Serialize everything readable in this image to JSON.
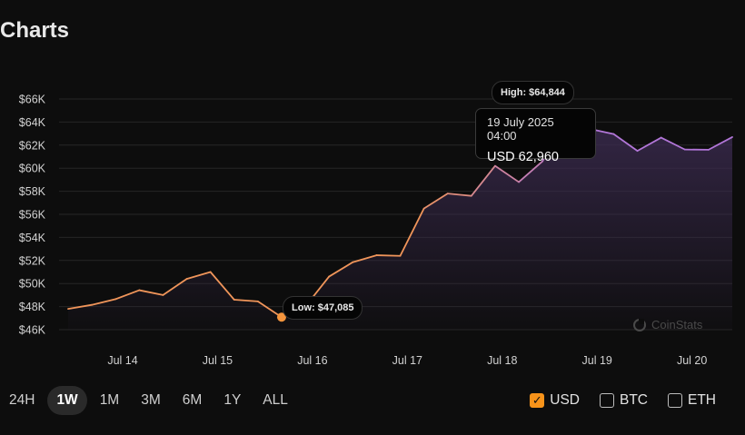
{
  "page": {
    "title": "Charts"
  },
  "chart_data": {
    "type": "line",
    "title": "Charts",
    "currency": "USD",
    "ylim": [
      46000,
      66000
    ],
    "y_ticks": [
      {
        "value": 46000,
        "label": "$46K"
      },
      {
        "value": 48000,
        "label": "$48K"
      },
      {
        "value": 50000,
        "label": "$50K"
      },
      {
        "value": 52000,
        "label": "$52K"
      },
      {
        "value": 54000,
        "label": "$54K"
      },
      {
        "value": 56000,
        "label": "$56K"
      },
      {
        "value": 58000,
        "label": "$58K"
      },
      {
        "value": 60000,
        "label": "$60K"
      },
      {
        "value": 62000,
        "label": "$62K"
      },
      {
        "value": 64000,
        "label": "$64K"
      },
      {
        "value": 66000,
        "label": "$66K"
      }
    ],
    "x_ticks": [
      {
        "t": 2.3,
        "label": "Jul 14"
      },
      {
        "t": 6.3,
        "label": "Jul 15"
      },
      {
        "t": 10.3,
        "label": "Jul 16"
      },
      {
        "t": 14.3,
        "label": "Jul 17"
      },
      {
        "t": 18.3,
        "label": "Jul 18"
      },
      {
        "t": 22.3,
        "label": "Jul 19"
      },
      {
        "t": 26.3,
        "label": "Jul 20"
      }
    ],
    "highlight_start_t": 21,
    "series": [
      {
        "name": "USD",
        "values": [
          47800,
          48150,
          48650,
          49420,
          49000,
          50400,
          51000,
          48600,
          48450,
          47085,
          48000,
          50600,
          51850,
          52450,
          52400,
          56500,
          57800,
          57600,
          60200,
          58800,
          60600,
          64844,
          63400,
          62960,
          61500,
          62650,
          61620,
          61600,
          62700
        ]
      }
    ],
    "high": {
      "t": 21,
      "value": 64844,
      "label": "High: $64,844"
    },
    "low": {
      "t": 9,
      "value": 47085,
      "label": "Low: $47,085"
    },
    "tooltip": {
      "date": "19 July 2025 04:00",
      "value_text": "USD 62,960"
    }
  },
  "colors": {
    "line_low": "#f0955a",
    "line_high": "#b276d8",
    "grid": "#262626",
    "low_dot": "#f5953d",
    "fill_top": "#3a2a4e"
  },
  "controls": {
    "ranges": [
      {
        "label": "24H",
        "active": false
      },
      {
        "label": "1W",
        "active": true
      },
      {
        "label": "1M",
        "active": false
      },
      {
        "label": "3M",
        "active": false
      },
      {
        "label": "6M",
        "active": false
      },
      {
        "label": "1Y",
        "active": false
      },
      {
        "label": "ALL",
        "active": false
      }
    ],
    "currencies": [
      {
        "label": "USD",
        "checked": true,
        "check_icon": "✓"
      },
      {
        "label": "BTC",
        "checked": false,
        "check_icon": ""
      },
      {
        "label": "ETH",
        "checked": false,
        "check_icon": ""
      }
    ]
  },
  "watermark": {
    "text": "CoinStats"
  }
}
